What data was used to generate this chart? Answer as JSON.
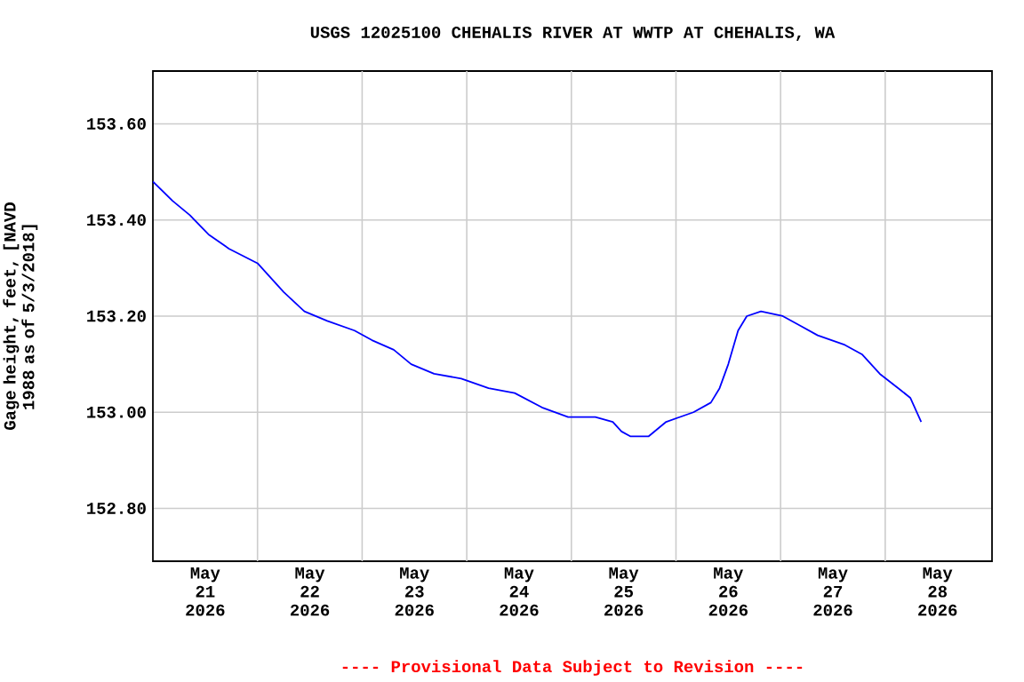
{
  "chart_data": {
    "type": "line",
    "title": "USGS 12025100 CHEHALIS RIVER AT WWTP AT CHEHALIS, WA",
    "ylabel": "Gage height, feet, [NAVD 1988 as of 5/3/2018]",
    "annotations": [
      "---- Provisional Data Subject to Revision ----"
    ],
    "x": [
      "2026-05-21T00:00",
      "2026-05-21T04:30",
      "2026-05-21T08:30",
      "2026-05-21T12:45",
      "2026-05-21T17:30",
      "2026-05-22T00:00",
      "2026-05-22T06:00",
      "2026-05-22T10:45",
      "2026-05-22T16:00",
      "2026-05-22T22:15",
      "2026-05-23T02:15",
      "2026-05-23T07:15",
      "2026-05-23T11:15",
      "2026-05-23T16:30",
      "2026-05-23T22:45",
      "2026-05-24T05:00",
      "2026-05-24T11:00",
      "2026-05-24T17:15",
      "2026-05-24T23:15",
      "2026-05-25T05:30",
      "2026-05-25T09:30",
      "2026-05-25T11:30",
      "2026-05-25T13:30",
      "2026-05-25T17:45",
      "2026-05-25T21:45",
      "2026-05-26T04:00",
      "2026-05-26T08:00",
      "2026-05-26T10:00",
      "2026-05-26T12:00",
      "2026-05-26T14:15",
      "2026-05-26T16:15",
      "2026-05-26T19:30",
      "2026-05-27T00:30",
      "2026-05-27T04:30",
      "2026-05-27T08:30",
      "2026-05-27T14:45",
      "2026-05-27T18:45",
      "2026-05-27T22:45",
      "2026-05-28T03:00",
      "2026-05-28T05:45",
      "2026-05-28T08:15"
    ],
    "series": [
      {
        "color": "#0000ff",
        "values": [
          153.48,
          153.44,
          153.41,
          153.37,
          153.34,
          153.31,
          153.25,
          153.21,
          153.19,
          153.17,
          153.15,
          153.13,
          153.1,
          153.08,
          153.07,
          153.05,
          153.04,
          153.01,
          152.99,
          152.99,
          152.98,
          152.96,
          152.95,
          152.95,
          152.98,
          153.0,
          153.02,
          153.05,
          153.1,
          153.17,
          153.2,
          153.21,
          153.2,
          153.18,
          153.16,
          153.14,
          153.12,
          153.08,
          153.05,
          153.03,
          152.98
        ]
      }
    ],
    "xlim": [
      "2026-05-21T00:00",
      "2026-05-29T00:30"
    ],
    "xticks": [
      {
        "value": "2026-05-21T12:00",
        "label": "May 21 2026"
      },
      {
        "value": "2026-05-22T00:00",
        "label": null
      },
      {
        "value": "2026-05-22T12:00",
        "label": "May 22 2026"
      },
      {
        "value": "2026-05-23T00:00",
        "label": null
      },
      {
        "value": "2026-05-23T12:00",
        "label": "May 23 2026"
      },
      {
        "value": "2026-05-24T00:00",
        "label": null
      },
      {
        "value": "2026-05-24T12:00",
        "label": "May 24 2026"
      },
      {
        "value": "2026-05-25T00:00",
        "label": null
      },
      {
        "value": "2026-05-25T12:00",
        "label": "May 25 2026"
      },
      {
        "value": "2026-05-26T00:00",
        "label": null
      },
      {
        "value": "2026-05-26T12:00",
        "label": "May 26 2026"
      },
      {
        "value": "2026-05-27T00:00",
        "label": null
      },
      {
        "value": "2026-05-27T12:00",
        "label": "May 27 2026"
      },
      {
        "value": "2026-05-28T00:00",
        "label": null
      },
      {
        "value": "2026-05-28T12:00",
        "label": "May 28 2026"
      }
    ],
    "ylim": [
      152.69,
      153.71
    ],
    "yticks": [
      {
        "value": 152.8,
        "label": "152.80"
      },
      {
        "value": 153.0,
        "label": "153.00"
      },
      {
        "value": 153.2,
        "label": "153.20"
      },
      {
        "value": 153.4,
        "label": "153.40"
      },
      {
        "value": 153.6,
        "label": "153.60"
      }
    ],
    "grid": true,
    "marker": "none",
    "line_style": "solid"
  }
}
